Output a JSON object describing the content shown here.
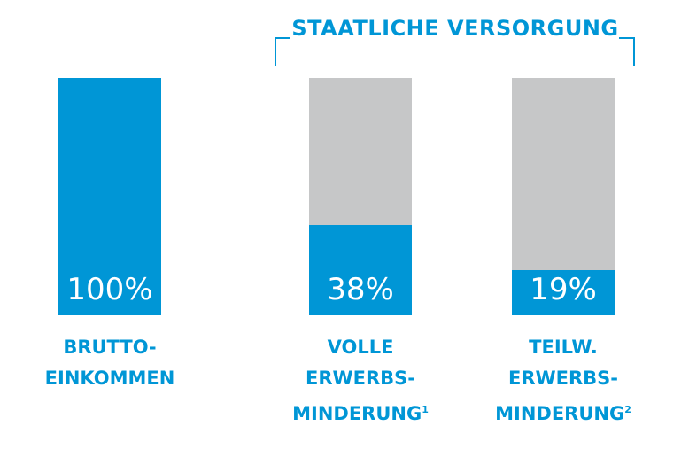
{
  "chart_data": {
    "type": "bar",
    "group_label": "STAATLICHE VERSORGUNG",
    "categories": [
      {
        "lines": [
          "BRUTTO-",
          "EINKOMMEN"
        ],
        "footnote": ""
      },
      {
        "lines": [
          "VOLLE",
          "ERWERBS-",
          "MINDERUNG"
        ],
        "footnote": "1"
      },
      {
        "lines": [
          "TEILW.",
          "ERWERBS-",
          "MINDERUNG"
        ],
        "footnote": "2"
      }
    ],
    "values": [
      100,
      38,
      19
    ],
    "value_labels": [
      "100%",
      "38%",
      "19%"
    ],
    "ylim": [
      0,
      100
    ],
    "grouped_indices": [
      1,
      2
    ],
    "colors": {
      "fill": "#0096d6",
      "remainder": "#c6c7c8",
      "value_text": "#ffffff",
      "label_text": "#0096d6"
    }
  }
}
